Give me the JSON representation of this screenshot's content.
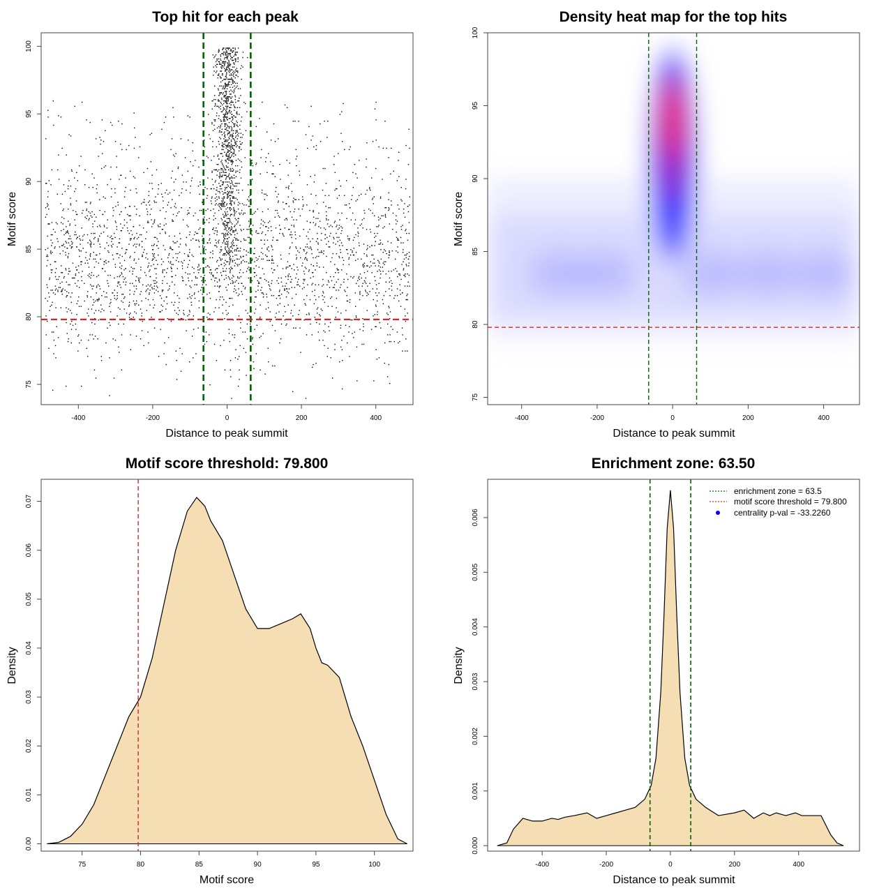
{
  "chart_data": [
    {
      "type": "scatter",
      "title": "Top hit for each peak",
      "xlabel": "Distance to peak summit",
      "ylabel": "Motif score",
      "xlim": [
        -500,
        500
      ],
      "ylim": [
        73.5,
        101
      ],
      "xticks": [
        -400,
        -200,
        0,
        200,
        400
      ],
      "yticks": [
        75,
        80,
        85,
        90,
        95,
        100
      ],
      "vlines": [
        -63.5,
        63.5
      ],
      "hline": 79.8,
      "vline_color": "#006400",
      "hline_color": "#d62728",
      "point_color": "#000000",
      "point_distribution": {
        "background_points": 2600,
        "background_x_range": [
          -490,
          490
        ],
        "background_y_mode": 84,
        "central_points": 1150,
        "central_x_spread": 18,
        "central_y_range": [
          82,
          100
        ]
      }
    },
    {
      "type": "heatmap",
      "title": "Density heat map for the top hits",
      "xlabel": "Distance to peak summit",
      "ylabel": "Motif score",
      "xlim": [
        -490,
        495
      ],
      "ylim": [
        74.5,
        100
      ],
      "xticks": [
        -400,
        -200,
        0,
        200,
        400
      ],
      "yticks": [
        75,
        80,
        85,
        90,
        95,
        100
      ],
      "vlines": [
        -63.5,
        63.5
      ],
      "hline": 79.8,
      "vline_color": "#006400",
      "hline_color": "#d62728",
      "colors": [
        "#ffffff",
        "#0000ff",
        "#ff0000"
      ],
      "density_peak": {
        "x": 0,
        "y": 94
      },
      "background_band": {
        "y_center": 84,
        "y_spread": 3.5
      }
    },
    {
      "type": "area",
      "title": "Motif score threshold: 79.800",
      "xlabel": "Motif score",
      "ylabel": "Density",
      "xlim": [
        71.5,
        103.3
      ],
      "ylim": [
        -0.0015,
        0.0745
      ],
      "xticks": [
        75,
        80,
        85,
        90,
        95,
        100
      ],
      "yticks": [
        0.0,
        0.01,
        0.02,
        0.03,
        0.04,
        0.05,
        0.06,
        0.07
      ],
      "ytick_labels": [
        "0.00",
        "0.01",
        "0.02",
        "0.03",
        "0.04",
        "0.05",
        "0.06",
        "0.07"
      ],
      "vline": 79.8,
      "vline_color": "#d62728",
      "fill_color": "#f5deb3",
      "x": [
        72,
        73,
        74,
        75,
        76,
        77,
        78,
        79,
        80,
        81,
        82,
        83,
        84,
        84.8,
        85.5,
        86,
        87,
        88,
        89,
        90,
        91,
        92,
        93,
        93.7,
        94.5,
        95,
        95.5,
        96,
        97,
        98,
        99,
        100,
        101,
        102,
        102.8
      ],
      "y": [
        0.0,
        0.0003,
        0.0015,
        0.004,
        0.008,
        0.014,
        0.02,
        0.026,
        0.03,
        0.038,
        0.049,
        0.06,
        0.068,
        0.0708,
        0.069,
        0.066,
        0.062,
        0.055,
        0.048,
        0.044,
        0.044,
        0.045,
        0.046,
        0.047,
        0.044,
        0.04,
        0.037,
        0.0365,
        0.034,
        0.026,
        0.02,
        0.013,
        0.006,
        0.001,
        0.0
      ]
    },
    {
      "type": "area",
      "title": "Enrichment zone: 63.50",
      "xlabel": "Distance to peak summit",
      "ylabel": "Density",
      "xlim": [
        -570,
        590
      ],
      "ylim": [
        -0.0001,
        0.0067
      ],
      "xticks": [
        -400,
        -200,
        0,
        200,
        400
      ],
      "yticks": [
        0.0,
        0.001,
        0.002,
        0.003,
        0.004,
        0.005,
        0.006
      ],
      "ytick_labels": [
        "0.000",
        "0.001",
        "0.002",
        "0.003",
        "0.004",
        "0.005",
        "0.006"
      ],
      "vlines": [
        -63.5,
        63.5
      ],
      "vline_color": "#006400",
      "fill_color": "#f5deb3",
      "x": [
        -540,
        -510,
        -490,
        -460,
        -430,
        -400,
        -370,
        -350,
        -330,
        -300,
        -260,
        -230,
        -200,
        -170,
        -140,
        -110,
        -80,
        -60,
        -45,
        -30,
        -20,
        -10,
        0,
        10,
        20,
        30,
        45,
        60,
        80,
        110,
        150,
        200,
        230,
        260,
        290,
        310,
        330,
        360,
        390,
        410,
        440,
        470,
        500,
        520,
        540
      ],
      "y": [
        0.0,
        5e-05,
        0.0003,
        0.0005,
        0.00045,
        0.00045,
        0.0005,
        0.00048,
        0.00052,
        0.00055,
        0.0006,
        0.0005,
        0.00055,
        0.0006,
        0.00065,
        0.0007,
        0.00085,
        0.0011,
        0.0016,
        0.0028,
        0.0042,
        0.0058,
        0.0065,
        0.0058,
        0.0042,
        0.0028,
        0.0016,
        0.0011,
        0.00085,
        0.0007,
        0.00055,
        0.0006,
        0.00065,
        0.0005,
        0.0006,
        0.00055,
        0.0006,
        0.00055,
        0.0006,
        0.00055,
        0.00055,
        0.00055,
        0.0002,
        5e-05,
        0.0
      ],
      "legend": [
        {
          "label": "enrichment zone = 63.5",
          "style": "dotted",
          "color": "#006400"
        },
        {
          "label": "motif score threshold = 79.800",
          "style": "dotted",
          "color": "#d62728"
        },
        {
          "label": "centrality p-val = -33.2260",
          "style": "point",
          "color": "#0000ff"
        }
      ],
      "legend_position": "top-right"
    }
  ]
}
